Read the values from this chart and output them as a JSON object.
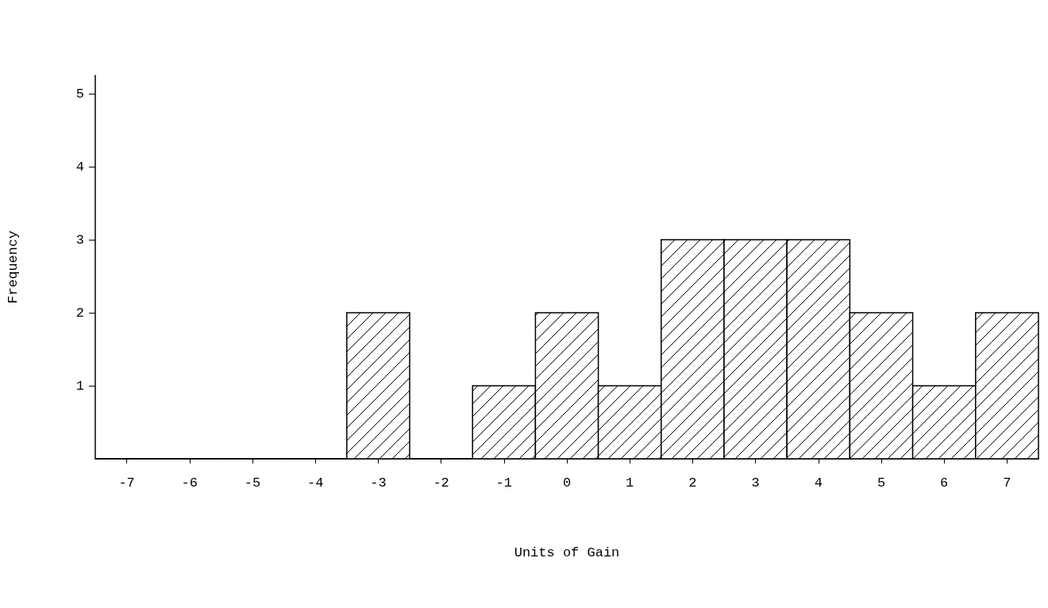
{
  "chart_data": {
    "type": "histogram",
    "xlabel": "Units of Gain",
    "ylabel": "Frequency",
    "bins": [
      -7.5,
      -6.5,
      -5.5,
      -4.5,
      -3.5,
      -2.5,
      -1.5,
      -0.5,
      0.5,
      1.5,
      2.5,
      3.5,
      4.5,
      5.5,
      6.5,
      7.5
    ],
    "values": [
      0,
      0,
      0,
      0,
      2,
      0,
      1,
      2,
      1,
      3,
      3,
      3,
      2,
      1,
      2
    ],
    "color": "#000000",
    "xlim": [
      -7.5,
      7.5
    ],
    "xticks": [
      -7,
      -6,
      -5,
      -4,
      -3,
      -2,
      -1,
      0,
      1,
      2,
      3,
      4,
      5,
      6,
      7
    ],
    "ylim": [
      0,
      5.25
    ],
    "yticks": [
      1,
      2,
      3,
      4,
      5
    ],
    "grid": false
  }
}
